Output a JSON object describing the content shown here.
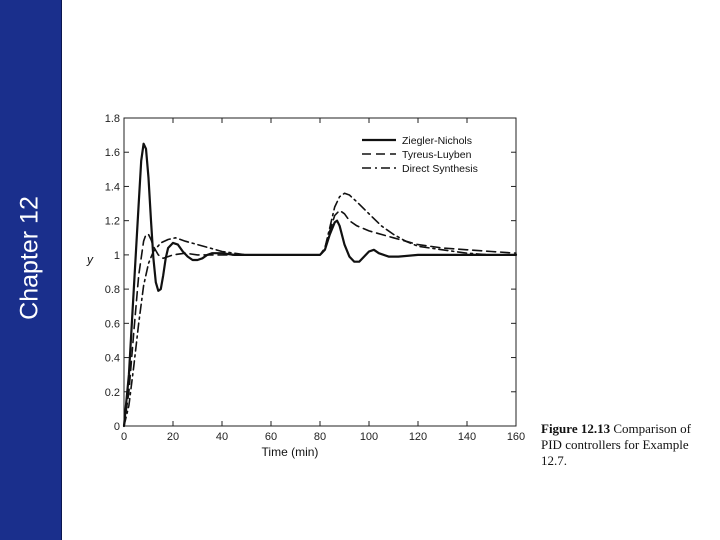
{
  "sidebar": {
    "label": "Chapter 12",
    "color": "#1a2f8c"
  },
  "caption": {
    "figure": "Figure 12.13",
    "text": "Comparison of PID controllers for Example 12.7."
  },
  "chart_data": {
    "type": "line",
    "title": "",
    "xlabel": "Time (min)",
    "ylabel": "y",
    "xlim": [
      0,
      160
    ],
    "ylim": [
      0,
      1.8
    ],
    "xticks": [
      0,
      20,
      40,
      60,
      80,
      100,
      120,
      140,
      160
    ],
    "yticks": [
      0,
      0.2,
      0.4,
      0.6,
      0.8,
      1,
      1.2,
      1.4,
      1.6,
      1.8
    ],
    "ytick_labels": [
      "0",
      "0.2",
      "0.4",
      "0.6",
      "0.8",
      "1",
      "1.2",
      "1.4",
      "1.6",
      "1.8"
    ],
    "grid": false,
    "legend_position": "top-right",
    "series": [
      {
        "name": "Ziegler-Nichols",
        "style": "solid",
        "points": [
          [
            0,
            0
          ],
          [
            2,
            0.3
          ],
          [
            4,
            0.8
          ],
          [
            6,
            1.3
          ],
          [
            7,
            1.55
          ],
          [
            8,
            1.65
          ],
          [
            9,
            1.62
          ],
          [
            10,
            1.45
          ],
          [
            11,
            1.2
          ],
          [
            12,
            0.98
          ],
          [
            13,
            0.84
          ],
          [
            14,
            0.79
          ],
          [
            15,
            0.8
          ],
          [
            16,
            0.88
          ],
          [
            17,
            0.98
          ],
          [
            18,
            1.04
          ],
          [
            20,
            1.07
          ],
          [
            22,
            1.06
          ],
          [
            24,
            1.02
          ],
          [
            26,
            0.99
          ],
          [
            28,
            0.97
          ],
          [
            30,
            0.97
          ],
          [
            32,
            0.98
          ],
          [
            34,
            1.0
          ],
          [
            36,
            1.01
          ],
          [
            40,
            1.01
          ],
          [
            45,
            1.0
          ],
          [
            50,
            1.0
          ],
          [
            60,
            1.0
          ],
          [
            70,
            1.0
          ],
          [
            80,
            1.0
          ],
          [
            82,
            1.03
          ],
          [
            84,
            1.12
          ],
          [
            86,
            1.19
          ],
          [
            87,
            1.2
          ],
          [
            88,
            1.17
          ],
          [
            90,
            1.06
          ],
          [
            92,
            0.99
          ],
          [
            94,
            0.96
          ],
          [
            96,
            0.96
          ],
          [
            98,
            0.99
          ],
          [
            100,
            1.02
          ],
          [
            102,
            1.03
          ],
          [
            104,
            1.01
          ],
          [
            108,
            0.99
          ],
          [
            112,
            0.99
          ],
          [
            120,
            1.0
          ],
          [
            130,
            1.0
          ],
          [
            140,
            1.0
          ],
          [
            160,
            1.0
          ]
        ]
      },
      {
        "name": "Tyreus-Luyben",
        "style": "dashed",
        "points": [
          [
            0,
            0
          ],
          [
            2,
            0.2
          ],
          [
            4,
            0.55
          ],
          [
            6,
            0.88
          ],
          [
            8,
            1.08
          ],
          [
            9,
            1.12
          ],
          [
            10,
            1.12
          ],
          [
            11,
            1.09
          ],
          [
            12,
            1.05
          ],
          [
            14,
            1.0
          ],
          [
            16,
            0.98
          ],
          [
            18,
            0.99
          ],
          [
            20,
            1.0
          ],
          [
            25,
            1.01
          ],
          [
            30,
            1.0
          ],
          [
            40,
            1.0
          ],
          [
            60,
            1.0
          ],
          [
            80,
            1.0
          ],
          [
            82,
            1.04
          ],
          [
            84,
            1.14
          ],
          [
            86,
            1.23
          ],
          [
            88,
            1.26
          ],
          [
            90,
            1.24
          ],
          [
            92,
            1.2
          ],
          [
            95,
            1.17
          ],
          [
            100,
            1.14
          ],
          [
            105,
            1.12
          ],
          [
            110,
            1.1
          ],
          [
            115,
            1.08
          ],
          [
            120,
            1.06
          ],
          [
            130,
            1.04
          ],
          [
            140,
            1.03
          ],
          [
            150,
            1.02
          ],
          [
            160,
            1.01
          ]
        ]
      },
      {
        "name": "Direct Synthesis",
        "style": "dash-dot",
        "points": [
          [
            0,
            0
          ],
          [
            2,
            0.12
          ],
          [
            4,
            0.35
          ],
          [
            6,
            0.6
          ],
          [
            8,
            0.82
          ],
          [
            10,
            0.95
          ],
          [
            12,
            1.02
          ],
          [
            15,
            1.07
          ],
          [
            18,
            1.09
          ],
          [
            21,
            1.1
          ],
          [
            25,
            1.08
          ],
          [
            30,
            1.06
          ],
          [
            35,
            1.04
          ],
          [
            40,
            1.02
          ],
          [
            45,
            1.01
          ],
          [
            50,
            1.0
          ],
          [
            60,
            1.0
          ],
          [
            70,
            1.0
          ],
          [
            80,
            1.0
          ],
          [
            82,
            1.04
          ],
          [
            84,
            1.16
          ],
          [
            86,
            1.28
          ],
          [
            88,
            1.34
          ],
          [
            90,
            1.36
          ],
          [
            92,
            1.35
          ],
          [
            95,
            1.31
          ],
          [
            100,
            1.24
          ],
          [
            105,
            1.17
          ],
          [
            110,
            1.12
          ],
          [
            115,
            1.08
          ],
          [
            120,
            1.05
          ],
          [
            130,
            1.03
          ],
          [
            140,
            1.01
          ],
          [
            150,
            1.0
          ],
          [
            160,
            1.0
          ]
        ]
      }
    ]
  }
}
